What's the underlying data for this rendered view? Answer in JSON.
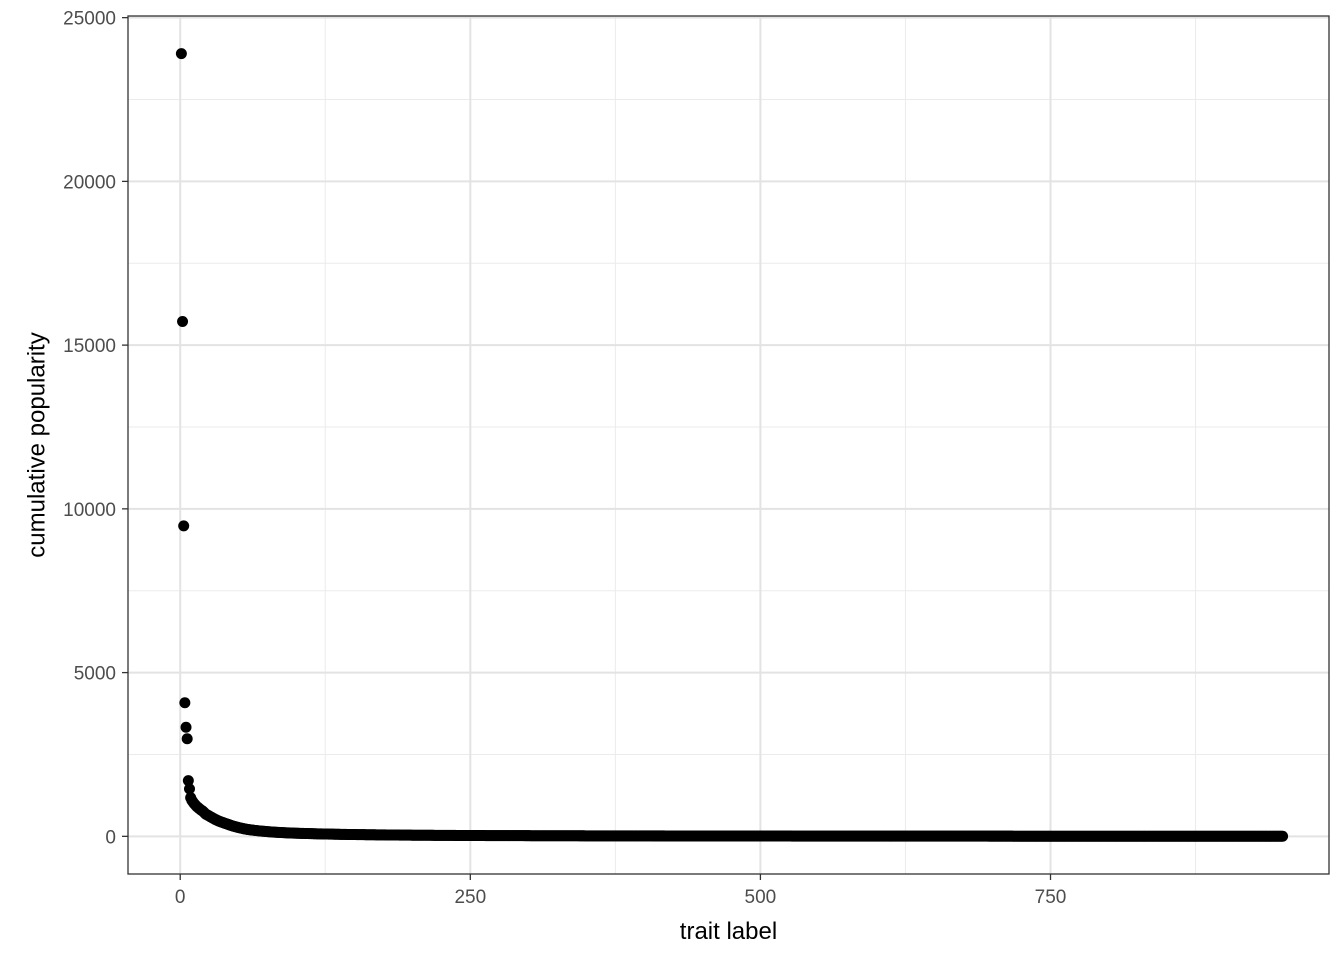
{
  "chart_data": {
    "type": "scatter",
    "title": "",
    "xlabel": "trait label",
    "ylabel": "cumulative popularity",
    "xlim": [
      -45,
      990
    ],
    "ylim": [
      -1150,
      25050
    ],
    "x_ticks": [
      0,
      250,
      500,
      750
    ],
    "x_tick_labels": [
      "0",
      "250",
      "500",
      "750"
    ],
    "y_ticks": [
      0,
      5000,
      10000,
      15000,
      20000,
      25000
    ],
    "y_tick_labels": [
      "0",
      "5000",
      "10000",
      "15000",
      "20000",
      "25000"
    ],
    "grid": true,
    "theme": "bw",
    "point_color": "#000000",
    "highlighted_points": [
      {
        "x": 1,
        "y": 23900
      },
      {
        "x": 2,
        "y": 15720
      },
      {
        "x": 3,
        "y": 9480
      },
      {
        "x": 4,
        "y": 4080
      },
      {
        "x": 5,
        "y": 3330
      },
      {
        "x": 6,
        "y": 2980
      },
      {
        "x": 7,
        "y": 1700
      },
      {
        "x": 8,
        "y": 1450
      },
      {
        "x": 9,
        "y": 1180
      },
      {
        "x": 10,
        "y": 1100
      }
    ],
    "series": [
      {
        "description": "traits 1-950, cumulative popularity decreasing with rank",
        "x": [
          1,
          2,
          3,
          4,
          5,
          6,
          7,
          8,
          9,
          10,
          11,
          12,
          13,
          14,
          15,
          16,
          17,
          18,
          19,
          20,
          22,
          24,
          26,
          28,
          30,
          33,
          36,
          40,
          45,
          50,
          55,
          60,
          70,
          80,
          90,
          100,
          120,
          140,
          160,
          180,
          200,
          250,
          300,
          350,
          400,
          450,
          500,
          550,
          600,
          650,
          700,
          750,
          800,
          850,
          900,
          950
        ],
        "y": [
          23900,
          15720,
          9480,
          4080,
          3330,
          2980,
          1700,
          1450,
          1180,
          1100,
          1050,
          1000,
          960,
          920,
          890,
          860,
          830,
          800,
          780,
          750,
          680,
          640,
          600,
          560,
          520,
          470,
          430,
          380,
          320,
          270,
          230,
          200,
          160,
          130,
          110,
          95,
          75,
          60,
          50,
          42,
          35,
          25,
          20,
          16,
          13,
          11,
          9,
          8,
          7,
          6,
          5,
          4,
          3,
          3,
          2,
          2
        ]
      }
    ]
  }
}
